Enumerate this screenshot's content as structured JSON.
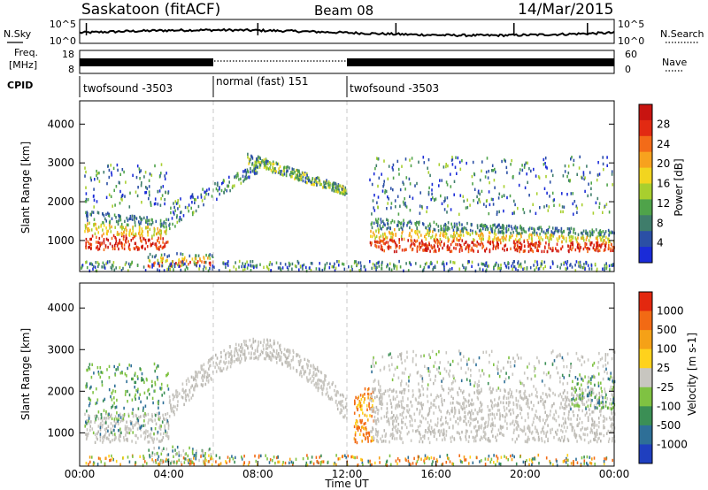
{
  "header": {
    "station": "Saskatoon (fitACF)",
    "beam": "Beam 08",
    "date": "14/Mar/2015"
  },
  "summary_panels": {
    "nsky_label": "N.Sky",
    "nsky_ticks": [
      "10^5",
      "10^0"
    ],
    "nsearch_label": "N.Search",
    "nsearch_ticks": [
      "10^5",
      "10^0"
    ],
    "freq_label": "Freq.",
    "freq_unit": "[MHz]",
    "freq_ticks": [
      "18",
      "8"
    ],
    "nave_label": "Nave",
    "nave_ticks": [
      "60",
      "0"
    ],
    "cpid_label": "CPID",
    "cpid_segments": [
      {
        "start_h": 0,
        "end_h": 6,
        "label": "twofsound -3503"
      },
      {
        "start_h": 6,
        "end_h": 12,
        "label": "normal (fast) 151"
      },
      {
        "start_h": 12,
        "end_h": 24,
        "label": "twofsound -3503"
      }
    ]
  },
  "chart_data": [
    {
      "type": "heatmap",
      "quantity": "Power",
      "ylabel": "Slant Range [km]",
      "xlim_hours": [
        0,
        24
      ],
      "ylim_km": [
        200,
        4600
      ],
      "yticks": [
        1000,
        2000,
        3000,
        4000
      ],
      "colorbar_label": "Power [dB]",
      "colorbar_ticks": [
        "28",
        "24",
        "20",
        "16",
        "12",
        "8",
        "4"
      ],
      "colorbar_colors": [
        "#1a2bd8",
        "#2b4fa5",
        "#3f7d6b",
        "#4fa34a",
        "#a8cf2e",
        "#f2d51f",
        "#f7a21e",
        "#f36b18",
        "#e22a12",
        "#c81410"
      ]
    },
    {
      "type": "heatmap",
      "quantity": "Velocity",
      "ylabel": "Slant Range [km]",
      "xlabel": "Time UT",
      "xlim_hours": [
        0,
        24
      ],
      "ylim_km": [
        200,
        4600
      ],
      "yticks": [
        1000,
        2000,
        3000,
        4000
      ],
      "xticks": [
        "00:00",
        "04:00",
        "08:00",
        "12:00",
        "16:00",
        "20:00",
        "00:00"
      ],
      "colorbar_label": "Velocity [m s-1]",
      "colorbar_ticks": [
        "1000",
        "500",
        "100",
        "25",
        "-25",
        "-100",
        "-500",
        "-1000"
      ],
      "colorbar_colors": [
        "#1f3fbf",
        "#2e6f97",
        "#3b8f55",
        "#7fc242",
        "#c8c6c0",
        "#ffd21c",
        "#f5a117",
        "#f26a14",
        "#e3280f"
      ]
    }
  ]
}
